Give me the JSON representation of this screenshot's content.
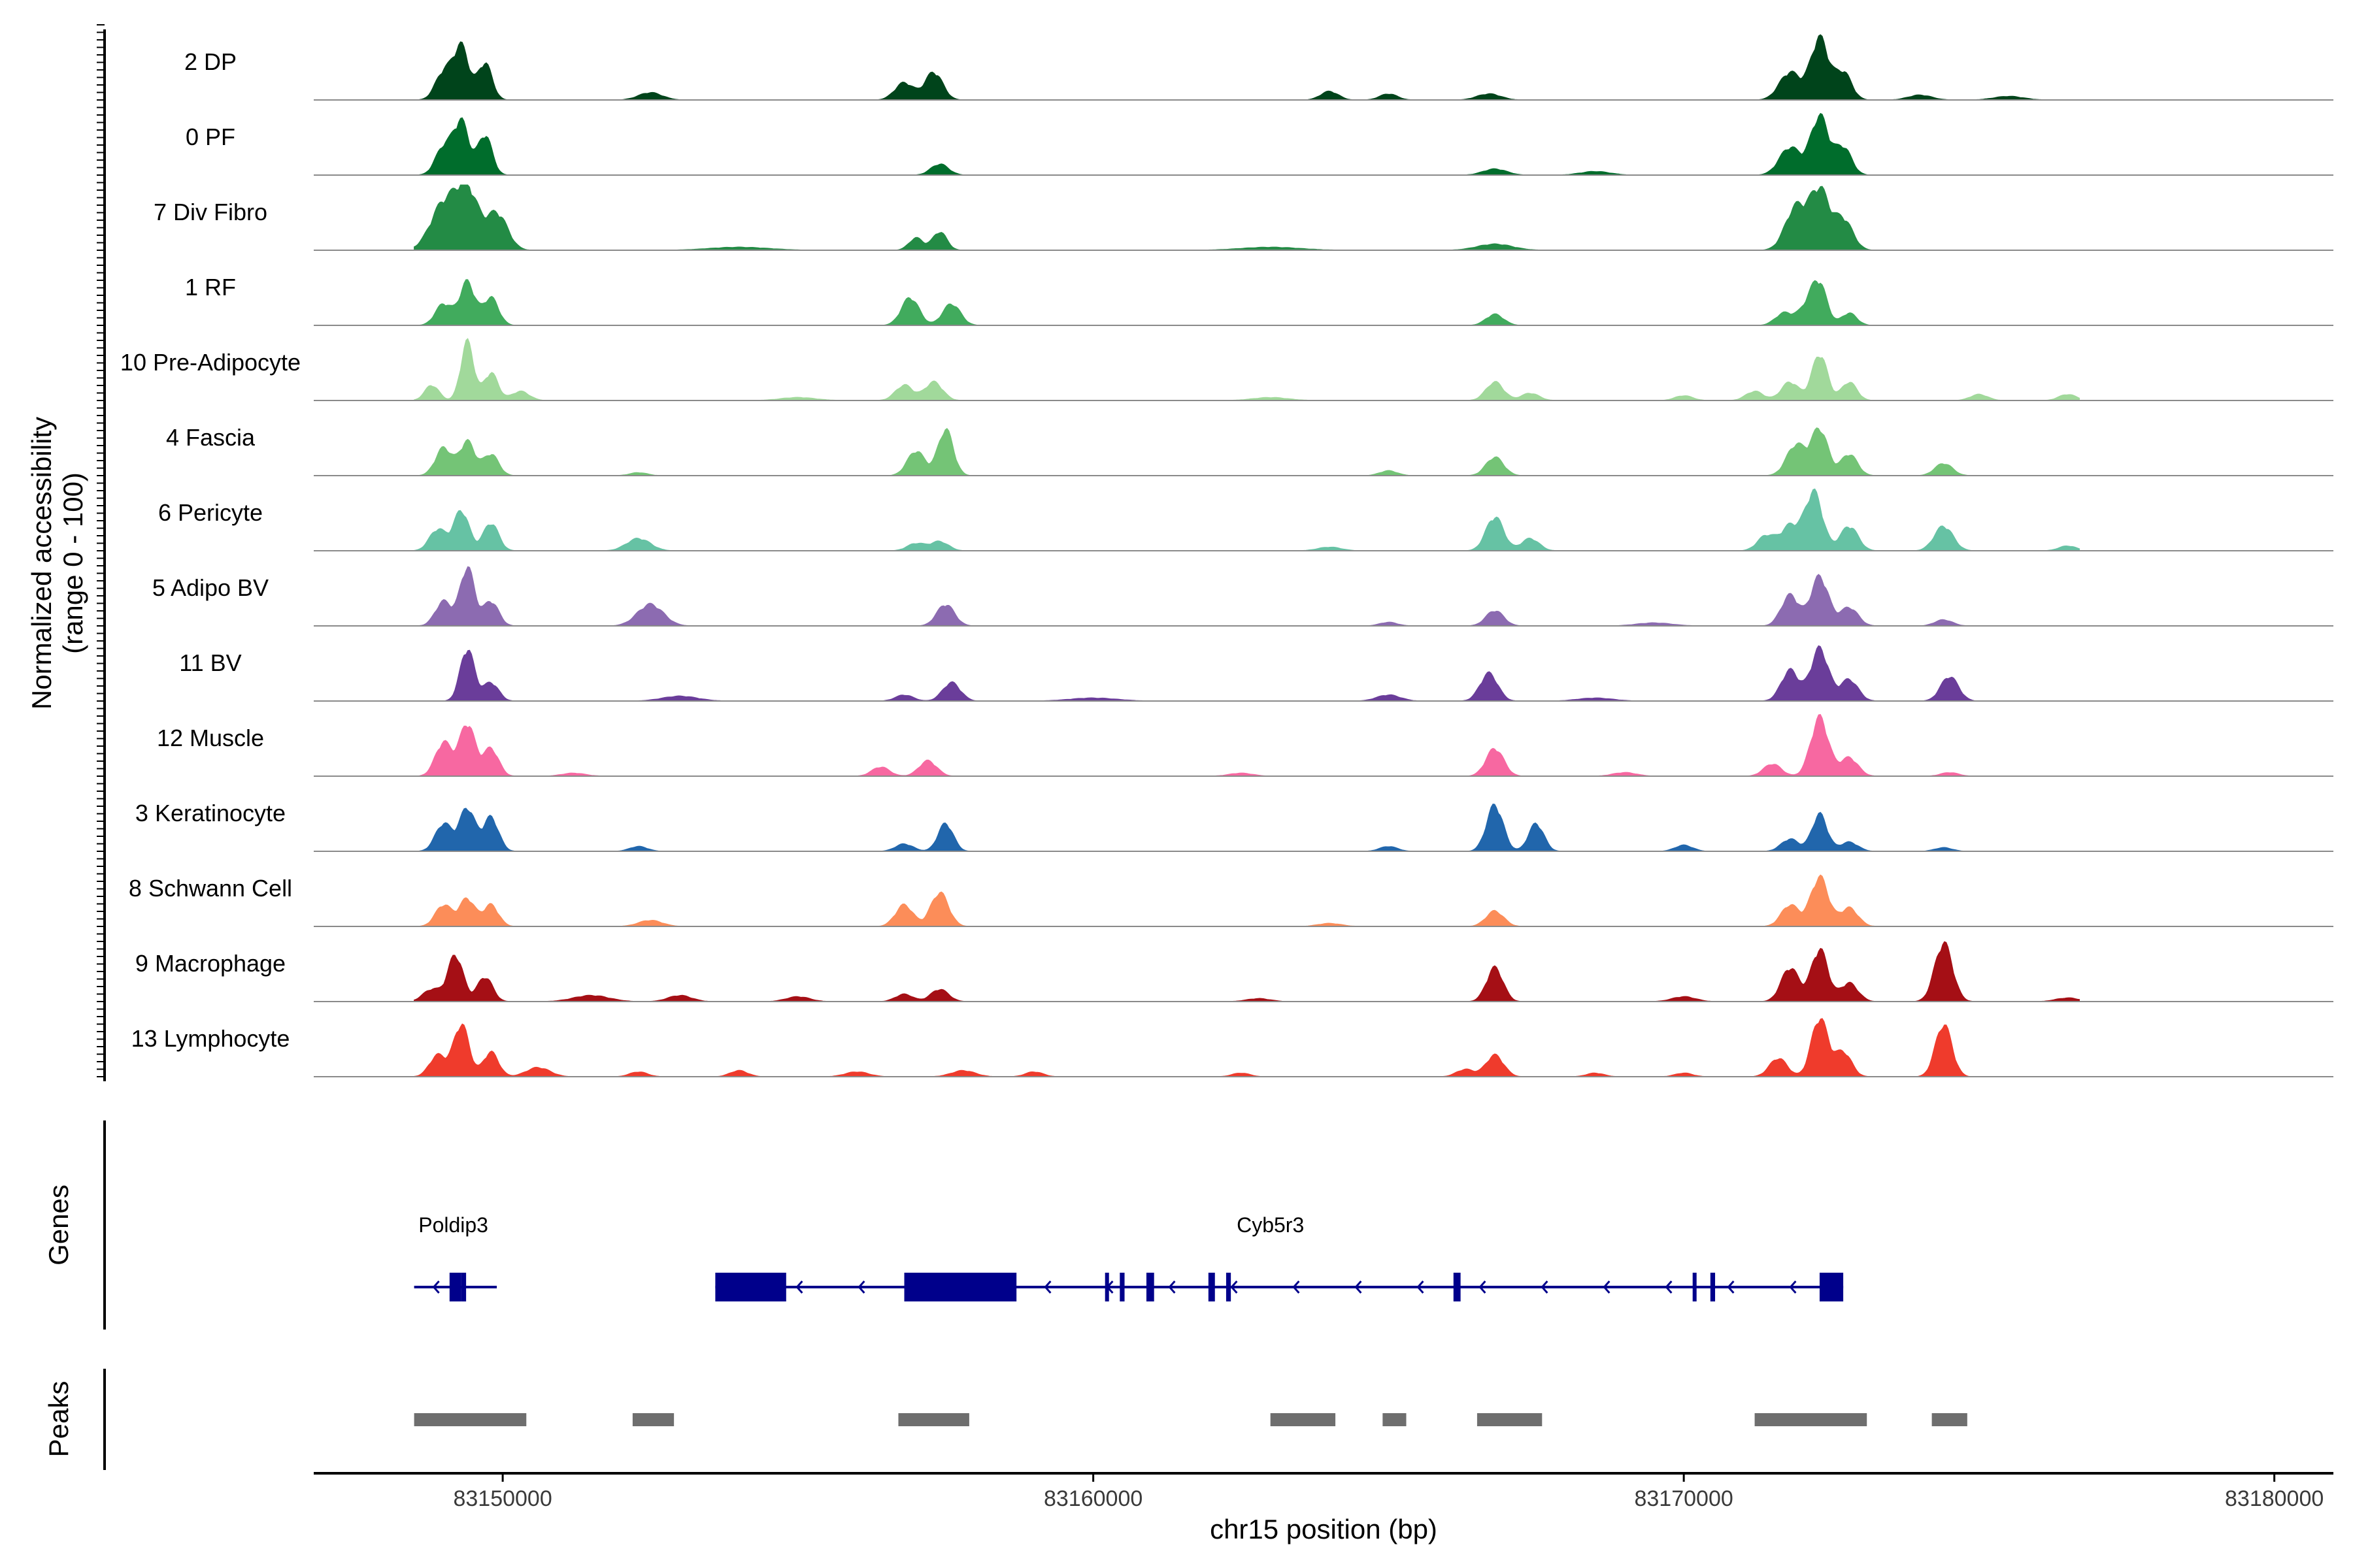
{
  "chart_data": {
    "type": "area",
    "title": "",
    "ylabel_line1": "Normalized accessibility",
    "ylabel_line2": "(range 0 - 100)",
    "xlabel": "chr15 position (bp)",
    "xlim": [
      83146800,
      83181000
    ],
    "xticks": [
      83150000,
      83160000,
      83170000,
      83180000
    ],
    "xtick_labels": [
      "83150000",
      "83160000",
      "83170000",
      "83180000"
    ],
    "ylim": [
      0,
      100
    ],
    "tracks": [
      {
        "name": "2 DP",
        "color": "#00441b",
        "peaks": [
          [
            83149000,
            0.45,
            140
          ],
          [
            83149300,
            0.85,
            130
          ],
          [
            83149700,
            0.6,
            120
          ],
          [
            83152500,
            0.12,
            200
          ],
          [
            83156800,
            0.28,
            160
          ],
          [
            83157300,
            0.45,
            150
          ],
          [
            83164000,
            0.14,
            150
          ],
          [
            83165000,
            0.1,
            150
          ],
          [
            83166700,
            0.1,
            200
          ],
          [
            83171800,
            0.45,
            180
          ],
          [
            83172300,
            1.0,
            150
          ],
          [
            83172700,
            0.45,
            140
          ],
          [
            83174000,
            0.08,
            200
          ],
          [
            83175500,
            0.06,
            250
          ]
        ]
      },
      {
        "name": "0 PF",
        "color": "#006d2c",
        "peaks": [
          [
            83149000,
            0.45,
            140
          ],
          [
            83149300,
            0.85,
            130
          ],
          [
            83149700,
            0.65,
            120
          ],
          [
            83157400,
            0.18,
            150
          ],
          [
            83166800,
            0.1,
            200
          ],
          [
            83171800,
            0.45,
            180
          ],
          [
            83172300,
            0.95,
            150
          ],
          [
            83172700,
            0.45,
            140
          ],
          [
            83168500,
            0.06,
            250
          ]
        ]
      },
      {
        "name": "7 Div Fibro",
        "color": "#238b45",
        "peaks": [
          [
            83149000,
            0.75,
            220
          ],
          [
            83149400,
            0.95,
            180
          ],
          [
            83149900,
            0.6,
            180
          ],
          [
            83157000,
            0.2,
            120
          ],
          [
            83157400,
            0.3,
            120
          ],
          [
            83166800,
            0.1,
            300
          ],
          [
            83171900,
            0.7,
            180
          ],
          [
            83172300,
            0.95,
            160
          ],
          [
            83172700,
            0.5,
            160
          ],
          [
            83154000,
            0.05,
            500
          ],
          [
            83163000,
            0.05,
            500
          ]
        ]
      },
      {
        "name": "1 RF",
        "color": "#41ab5d",
        "peaks": [
          [
            83149000,
            0.35,
            140
          ],
          [
            83149400,
            0.7,
            130
          ],
          [
            83149800,
            0.45,
            130
          ],
          [
            83156900,
            0.45,
            150
          ],
          [
            83157600,
            0.35,
            150
          ],
          [
            83166800,
            0.18,
            150
          ],
          [
            83171700,
            0.2,
            150
          ],
          [
            83172100,
            0.3,
            150
          ],
          [
            83172300,
            0.6,
            130
          ],
          [
            83172800,
            0.2,
            130
          ]
        ]
      },
      {
        "name": "10 Pre-Adipocyte",
        "color": "#a1d99b",
        "peaks": [
          [
            83148800,
            0.25,
            120
          ],
          [
            83149400,
            0.95,
            110
          ],
          [
            83149800,
            0.45,
            120
          ],
          [
            83150300,
            0.15,
            150
          ],
          [
            83156800,
            0.25,
            150
          ],
          [
            83157300,
            0.3,
            150
          ],
          [
            83166800,
            0.3,
            150
          ],
          [
            83167400,
            0.12,
            150
          ],
          [
            83171200,
            0.15,
            150
          ],
          [
            83171800,
            0.3,
            150
          ],
          [
            83172300,
            0.75,
            130
          ],
          [
            83172800,
            0.3,
            130
          ],
          [
            83175000,
            0.1,
            150
          ],
          [
            83176500,
            0.1,
            150
          ],
          [
            83155000,
            0.05,
            300
          ],
          [
            83163000,
            0.05,
            300
          ],
          [
            83170000,
            0.08,
            150
          ]
        ]
      },
      {
        "name": "4 Fascia",
        "color": "#74c476",
        "peaks": [
          [
            83149000,
            0.45,
            140
          ],
          [
            83149400,
            0.55,
            130
          ],
          [
            83149800,
            0.35,
            130
          ],
          [
            83157000,
            0.4,
            150
          ],
          [
            83157500,
            0.75,
            130
          ],
          [
            83165000,
            0.08,
            150
          ],
          [
            83166800,
            0.3,
            150
          ],
          [
            83171900,
            0.5,
            160
          ],
          [
            83172300,
            0.75,
            140
          ],
          [
            83172800,
            0.35,
            140
          ],
          [
            83174400,
            0.2,
            150
          ],
          [
            83152300,
            0.05,
            150
          ]
        ]
      },
      {
        "name": "6 Pericyte",
        "color": "#66c2a4",
        "peaks": [
          [
            83148900,
            0.35,
            140
          ],
          [
            83149300,
            0.65,
            130
          ],
          [
            83149800,
            0.45,
            130
          ],
          [
            83152300,
            0.2,
            200
          ],
          [
            83157000,
            0.12,
            150
          ],
          [
            83157400,
            0.15,
            150
          ],
          [
            83166800,
            0.55,
            150
          ],
          [
            83167400,
            0.2,
            150
          ],
          [
            83171400,
            0.25,
            150
          ],
          [
            83171800,
            0.4,
            150
          ],
          [
            83172200,
            0.95,
            150
          ],
          [
            83172800,
            0.4,
            150
          ],
          [
            83174400,
            0.4,
            160
          ],
          [
            83176500,
            0.08,
            150
          ],
          [
            83164000,
            0.06,
            200
          ]
        ]
      },
      {
        "name": "5 Adipo BV",
        "color": "#8c6bb1",
        "peaks": [
          [
            83149000,
            0.4,
            140
          ],
          [
            83149400,
            0.95,
            120
          ],
          [
            83149800,
            0.4,
            130
          ],
          [
            83152500,
            0.35,
            220
          ],
          [
            83157500,
            0.35,
            150
          ],
          [
            83165000,
            0.06,
            150
          ],
          [
            83166800,
            0.25,
            150
          ],
          [
            83171800,
            0.5,
            150
          ],
          [
            83172300,
            0.8,
            150
          ],
          [
            83172800,
            0.3,
            150
          ],
          [
            83174400,
            0.1,
            150
          ],
          [
            83169500,
            0.05,
            300
          ]
        ]
      },
      {
        "name": "11 BV",
        "color": "#6a3d9a",
        "peaks": [
          [
            83149400,
            0.85,
            120
          ],
          [
            83149800,
            0.3,
            130
          ],
          [
            83153000,
            0.08,
            300
          ],
          [
            83157600,
            0.3,
            150
          ],
          [
            83156800,
            0.1,
            150
          ],
          [
            83166700,
            0.45,
            150
          ],
          [
            83165000,
            0.1,
            200
          ],
          [
            83171800,
            0.5,
            150
          ],
          [
            83172300,
            0.85,
            150
          ],
          [
            83172800,
            0.35,
            150
          ],
          [
            83174500,
            0.4,
            150
          ],
          [
            83160000,
            0.05,
            400
          ],
          [
            83168500,
            0.05,
            300
          ]
        ]
      },
      {
        "name": "12 Muscle",
        "color": "#f768a1",
        "peaks": [
          [
            83149000,
            0.55,
            140
          ],
          [
            83149400,
            0.85,
            130
          ],
          [
            83149800,
            0.45,
            130
          ],
          [
            83156400,
            0.15,
            150
          ],
          [
            83157200,
            0.25,
            150
          ],
          [
            83166800,
            0.45,
            150
          ],
          [
            83171500,
            0.2,
            150
          ],
          [
            83172300,
            0.95,
            150
          ],
          [
            83172800,
            0.3,
            150
          ],
          [
            83151200,
            0.05,
            200
          ],
          [
            83162500,
            0.05,
            200
          ],
          [
            83169000,
            0.06,
            200
          ],
          [
            83174500,
            0.06,
            150
          ]
        ]
      },
      {
        "name": "3 Keratinocyte",
        "color": "#2166ac",
        "peaks": [
          [
            83149000,
            0.45,
            140
          ],
          [
            83149400,
            0.7,
            130
          ],
          [
            83149800,
            0.55,
            130
          ],
          [
            83152300,
            0.08,
            150
          ],
          [
            83156800,
            0.12,
            150
          ],
          [
            83157500,
            0.45,
            130
          ],
          [
            83166800,
            0.75,
            140
          ],
          [
            83167500,
            0.45,
            130
          ],
          [
            83165000,
            0.08,
            150
          ],
          [
            83170000,
            0.1,
            150
          ],
          [
            83171800,
            0.2,
            150
          ],
          [
            83172300,
            0.6,
            130
          ],
          [
            83172800,
            0.15,
            150
          ],
          [
            83174400,
            0.06,
            150
          ]
        ]
      },
      {
        "name": "8 Schwann Cell",
        "color": "#fc8d59",
        "peaks": [
          [
            83149000,
            0.35,
            140
          ],
          [
            83149400,
            0.45,
            130
          ],
          [
            83149800,
            0.35,
            130
          ],
          [
            83152500,
            0.1,
            200
          ],
          [
            83156800,
            0.35,
            150
          ],
          [
            83157400,
            0.55,
            150
          ],
          [
            83166800,
            0.25,
            150
          ],
          [
            83171800,
            0.35,
            150
          ],
          [
            83172300,
            0.8,
            150
          ],
          [
            83172800,
            0.3,
            150
          ],
          [
            83164000,
            0.05,
            200
          ]
        ]
      },
      {
        "name": "9 Macrophage",
        "color": "#a50f15",
        "peaks": [
          [
            83148800,
            0.2,
            150
          ],
          [
            83149200,
            0.75,
            130
          ],
          [
            83149700,
            0.4,
            130
          ],
          [
            83151500,
            0.1,
            300
          ],
          [
            83153000,
            0.1,
            200
          ],
          [
            83155000,
            0.08,
            200
          ],
          [
            83156800,
            0.12,
            150
          ],
          [
            83157400,
            0.2,
            150
          ],
          [
            83166800,
            0.55,
            140
          ],
          [
            83171800,
            0.55,
            150
          ],
          [
            83172300,
            0.85,
            140
          ],
          [
            83172800,
            0.3,
            150
          ],
          [
            83174400,
            0.95,
            150
          ],
          [
            83176500,
            0.06,
            200
          ],
          [
            83162800,
            0.05,
            200
          ],
          [
            83170000,
            0.08,
            200
          ]
        ]
      },
      {
        "name": "13 Lymphocyte",
        "color": "#ef3b2c",
        "peaks": [
          [
            83148900,
            0.35,
            140
          ],
          [
            83149300,
            0.85,
            130
          ],
          [
            83149800,
            0.4,
            130
          ],
          [
            83150600,
            0.15,
            200
          ],
          [
            83152300,
            0.08,
            150
          ],
          [
            83154000,
            0.1,
            150
          ],
          [
            83156000,
            0.08,
            200
          ],
          [
            83157800,
            0.1,
            200
          ],
          [
            83159000,
            0.08,
            150
          ],
          [
            83166800,
            0.35,
            150
          ],
          [
            83166300,
            0.12,
            150
          ],
          [
            83171600,
            0.3,
            150
          ],
          [
            83172300,
            0.95,
            140
          ],
          [
            83172700,
            0.4,
            140
          ],
          [
            83174400,
            0.85,
            140
          ],
          [
            83162500,
            0.06,
            150
          ],
          [
            83168500,
            0.06,
            150
          ],
          [
            83170000,
            0.06,
            150
          ]
        ]
      }
    ],
    "genes": [
      {
        "name": "Poldip3",
        "strand": "-",
        "start": 83148500,
        "end": 83149900,
        "exons": [
          [
            83149100,
            83149300
          ],
          [
            83149300,
            83149380
          ]
        ]
      },
      {
        "name": "Cyb5r3",
        "strand": "-",
        "start": 83153600,
        "end": 83172700,
        "exons": [
          [
            83153600,
            83154800
          ],
          [
            83156800,
            83158700
          ],
          [
            83160200,
            83160250
          ],
          [
            83160450,
            83160530
          ],
          [
            83160900,
            83161030
          ],
          [
            83161950,
            83162060
          ],
          [
            83162250,
            83162330
          ],
          [
            83166100,
            83166220
          ],
          [
            83170150,
            83170200
          ],
          [
            83170450,
            83170530
          ],
          [
            83172300,
            83172700
          ]
        ]
      }
    ],
    "gene_color": "#00008b",
    "peaks_track": {
      "color": "#6e6e6e",
      "regions": [
        [
          83148500,
          83150400
        ],
        [
          83152200,
          83152900
        ],
        [
          83156700,
          83157900
        ],
        [
          83163000,
          83164100
        ],
        [
          83164900,
          83165300
        ],
        [
          83166500,
          83167600
        ],
        [
          83171200,
          83173100
        ],
        [
          83174200,
          83174800
        ]
      ]
    },
    "panel_labels": {
      "genes": "Genes",
      "peaks": "Peaks"
    }
  }
}
